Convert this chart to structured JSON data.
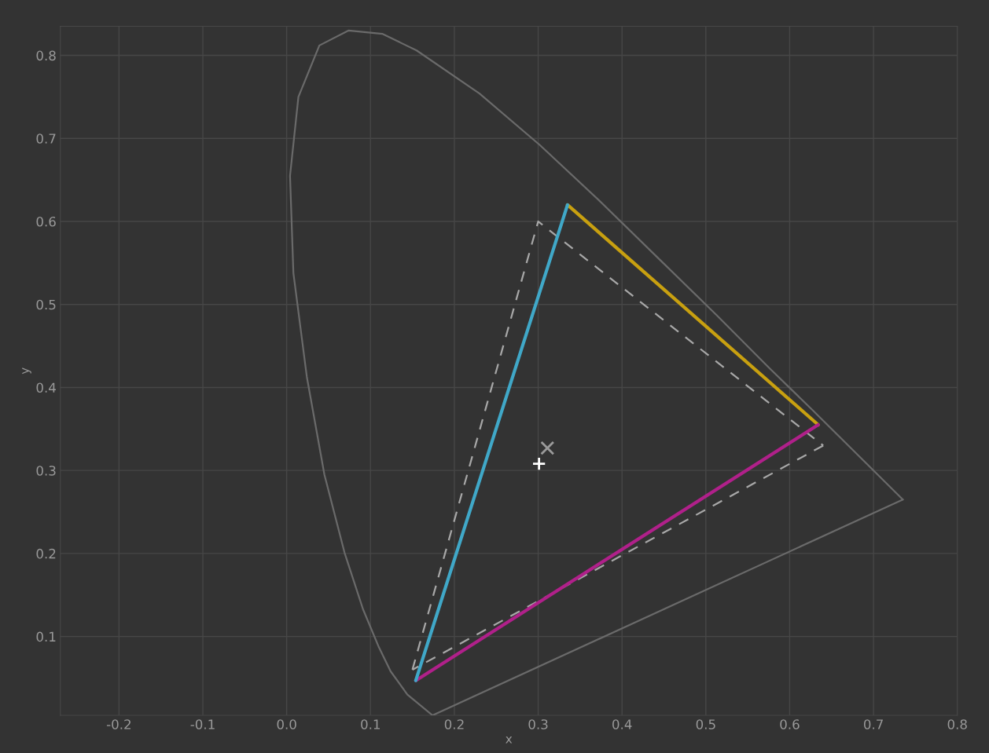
{
  "chart_data": {
    "type": "line",
    "xlabel": "x",
    "ylabel": "y",
    "xlim": [
      -0.27,
      0.8
    ],
    "ylim": [
      0.005,
      0.835
    ],
    "xticks": [
      -0.2,
      -0.1,
      {
        "value": 0,
        "label": "0.0"
      },
      0.1,
      0.2,
      0.3,
      0.4,
      0.5,
      0.6,
      0.7,
      0.8
    ],
    "yticks": [
      0.1,
      0.2,
      0.3,
      0.4,
      0.5,
      0.6,
      0.7,
      0.8
    ],
    "grid": true,
    "series": [
      {
        "color": "#6a6a6a",
        "x": [
          0.174,
          0.144,
          0.124,
          0.11,
          0.091,
          0.069,
          0.045,
          0.024,
          0.008,
          0.004,
          0.014,
          0.039,
          0.074,
          0.114,
          0.155,
          0.23,
          0.302,
          0.373,
          0.444,
          0.513,
          0.575,
          0.627,
          0.692,
          0.735
        ],
        "values": [
          0.005,
          0.03,
          0.058,
          0.087,
          0.133,
          0.201,
          0.295,
          0.413,
          0.538,
          0.655,
          0.75,
          0.812,
          0.83,
          0.826,
          0.806,
          0.754,
          0.692,
          0.625,
          0.555,
          0.487,
          0.424,
          0.373,
          0.308,
          0.265
        ]
      },
      {
        "color": "#6a6a6a",
        "x": [
          0.735,
          0.174
        ],
        "values": [
          0.265,
          0.005
        ]
      },
      {
        "line_style": "dashed",
        "color": "#a8a8a8",
        "x": [
          0.15,
          0.3,
          0.64
        ],
        "values": [
          0.06,
          0.6,
          0.33
        ]
      },
      {
        "line_style": "dashed",
        "color": "#a8a8a8",
        "x": [
          0.64,
          0.15
        ],
        "values": [
          0.33,
          0.06
        ]
      },
      {
        "color": "#c8a010",
        "x": [
          0.335,
          0.634
        ],
        "values": [
          0.62,
          0.355
        ]
      },
      {
        "color": "#b0208a",
        "x": [
          0.634,
          0.154
        ],
        "values": [
          0.355,
          0.047
        ]
      },
      {
        "color": "#40a8c8",
        "x": [
          0.154,
          0.335
        ],
        "values": [
          0.047,
          0.62
        ]
      },
      {
        "type": "scatter",
        "marker": "cross",
        "color": "#9a9a9a",
        "x": [
          0.311
        ],
        "values": [
          0.327
        ]
      },
      {
        "type": "scatter",
        "marker": "plus",
        "color": "#ffffff",
        "x": [
          0.301
        ],
        "values": [
          0.308
        ]
      }
    ]
  }
}
